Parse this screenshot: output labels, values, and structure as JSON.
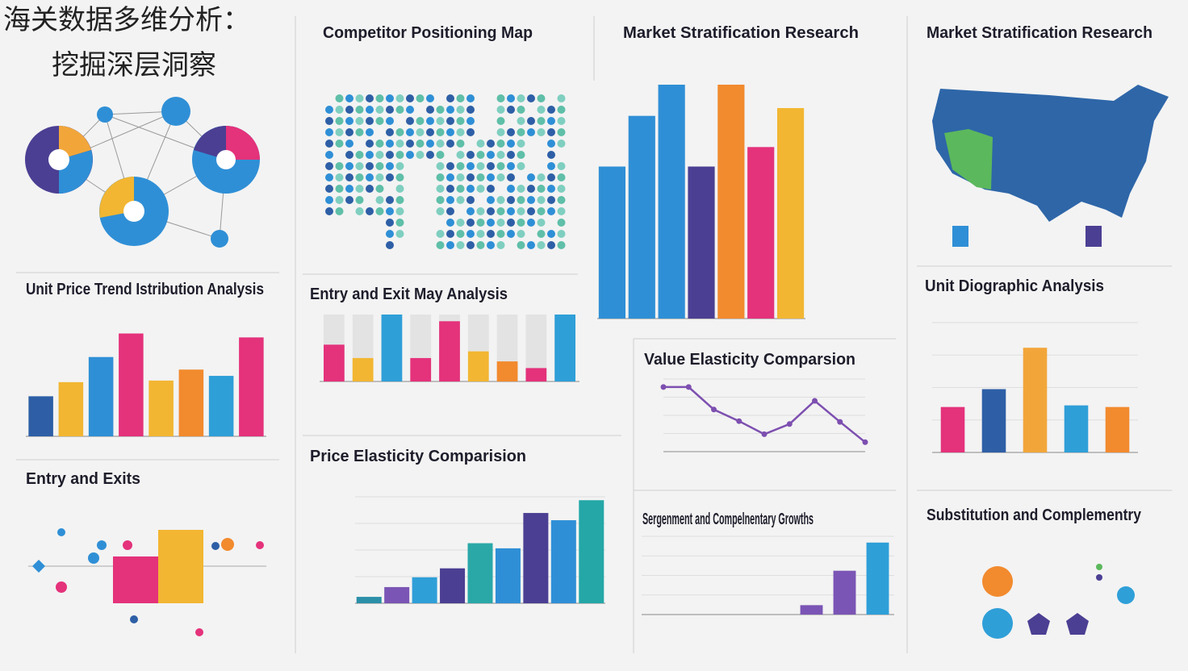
{
  "title_lines": [
    "海关数据多维分析：",
    "挖掘深层洞察"
  ],
  "panels": [
    {
      "title": "Competitor Positioning Map"
    },
    {
      "title": "Market Stratification Research"
    },
    {
      "title": "Entry and Exits"
    },
    {
      "title": "Substitution and Complementry"
    }
  ],
  "chart_data": [
    {
      "type": "bar",
      "title": "Market Stratification Research",
      "values": [
        195,
        260,
        300,
        195,
        300,
        220,
        270
      ],
      "colors": [
        "#2f8fd6",
        "#2f8fd6",
        "#2f8fd6",
        "#4b3f93",
        "#f28a2e",
        "#e4327b",
        "#f2b632"
      ],
      "ylim": [
        0,
        300
      ]
    },
    {
      "type": "bar",
      "title": "Unit Price Trend Istribution Analysis",
      "values": [
        51,
        69,
        101,
        131,
        71,
        85,
        77,
        126
      ],
      "colors": [
        "#2e5fa6",
        "#f2b632",
        "#2f8fd6",
        "#e4327b",
        "#f2b632",
        "#f28a2e",
        "#2f9fd8",
        "#e4327b"
      ],
      "ylim": [
        0,
        150
      ]
    },
    {
      "type": "bar",
      "title": "Entry and Exit May Analysis",
      "values": [
        55,
        35,
        100,
        35,
        90,
        45,
        30,
        20,
        100
      ],
      "colors": [
        "#e4327b",
        "#f2b632",
        "#2f9fd8",
        "#e4327b",
        "#e4327b",
        "#f2b632",
        "#f28a2e",
        "#e4327b",
        "#2f9fd8"
      ],
      "ylim": [
        0,
        100
      ],
      "track_color": "#e3e3e3"
    },
    {
      "type": "line",
      "title": "Value Elasticity Comparsion",
      "values": [
        89,
        89,
        58,
        42,
        24,
        38,
        70,
        41,
        13
      ],
      "color": "#7d4fb0",
      "ylim": [
        0,
        100
      ],
      "grid": true
    },
    {
      "type": "bar",
      "title": "Price Elasticity Comparision",
      "values": [
        15,
        38,
        61,
        82,
        141,
        129,
        212,
        195,
        242
      ],
      "colors": [
        "#2b8fa8",
        "#7b55b5",
        "#2f9fd8",
        "#4b3f93",
        "#2aa8a8",
        "#2f8fd6",
        "#4b3f93",
        "#2f8fd6",
        "#25a7a7"
      ],
      "ylim": [
        0,
        250
      ],
      "grid": true
    },
    {
      "type": "bar",
      "title": "Unit Diographic Analysis",
      "values": [
        56,
        78,
        129,
        58,
        56
      ],
      "colors": [
        "#e4327b",
        "#2e5fa6",
        "#f2a63a",
        "#2f9fd8",
        "#f28a2e"
      ],
      "ylim": [
        0,
        160
      ],
      "grid": true
    },
    {
      "type": "bar",
      "title": "Sergenment and Compelnentary Growths",
      "values": [
        12,
        56,
        92
      ],
      "colors": [
        "#7b55b5",
        "#7b55b5",
        "#2f9fd8"
      ],
      "ylim": [
        0,
        100
      ],
      "grid": true
    }
  ]
}
